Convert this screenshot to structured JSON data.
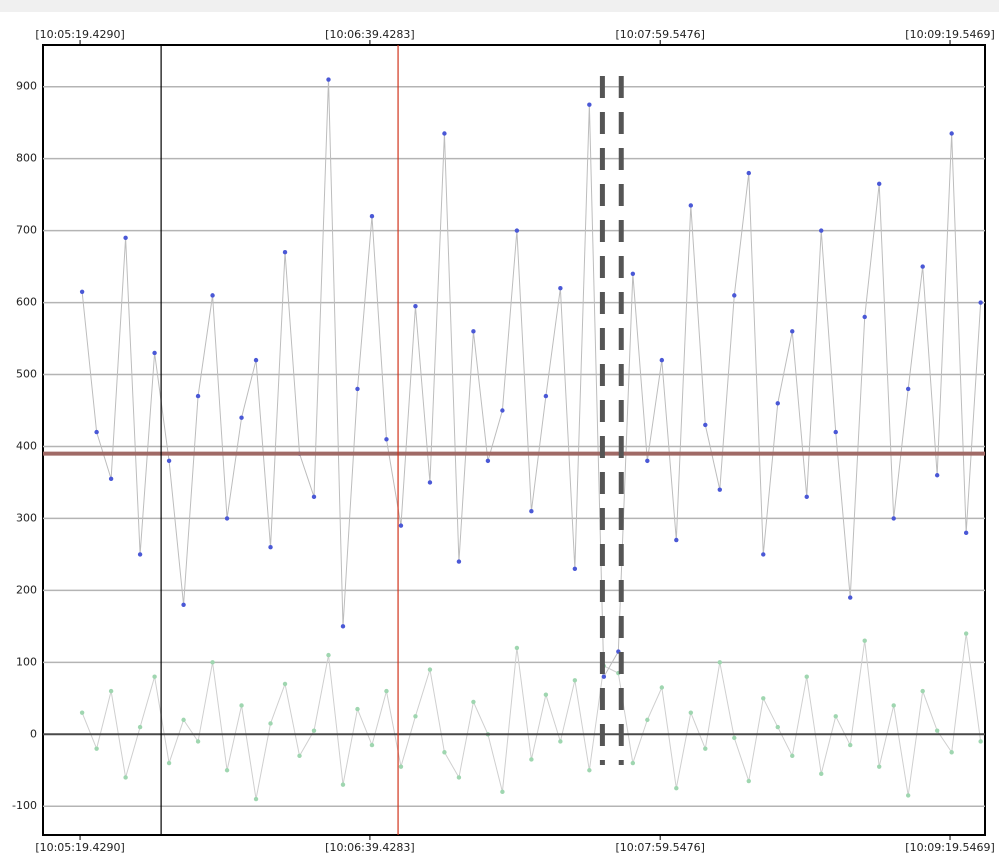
{
  "chart_data": {
    "type": "scatter-line",
    "xlim": [
      36309.2,
      36569.2
    ],
    "ylim": [
      -140,
      958
    ],
    "xticks": [
      {
        "value": 36319.429,
        "label": "[10:05:19.4290]"
      },
      {
        "value": 36399.4283,
        "label": "[10:06:39.4283]"
      },
      {
        "value": 36479.5476,
        "label": "[10:07:59.5476]"
      },
      {
        "value": 36559.5469,
        "label": "[10:09:19.5469]"
      }
    ],
    "yticks": [
      -100,
      0,
      100,
      200,
      300,
      400,
      500,
      600,
      700,
      800,
      900
    ],
    "grid": true,
    "x": [
      36320,
      36324,
      36328,
      36332,
      36336,
      36340,
      36344,
      36348,
      36352,
      36356,
      36360,
      36364,
      36368,
      36372,
      36376,
      36380,
      36384,
      36388,
      36392,
      36396,
      36400,
      36404,
      36408,
      36412,
      36416,
      36420,
      36424,
      36428,
      36432,
      36436,
      36440,
      36444,
      36448,
      36452,
      36456,
      36460,
      36464,
      36468,
      36472,
      36476,
      36480,
      36484,
      36488,
      36492,
      36496,
      36500,
      36504,
      36508,
      36512,
      36516,
      36520,
      36524,
      36528,
      36532,
      36536,
      36540,
      36544,
      36548,
      36552,
      36556,
      36560,
      36564,
      36568
    ],
    "series": [
      {
        "color": "#4a58d6",
        "line_color": "#bdbdbd",
        "values": [
          615,
          420,
          355,
          690,
          250,
          530,
          380,
          180,
          470,
          610,
          300,
          440,
          520,
          260,
          670,
          390,
          330,
          910,
          150,
          480,
          720,
          410,
          290,
          595,
          350,
          835,
          240,
          560,
          380,
          450,
          700,
          310,
          470,
          620,
          230,
          875,
          80,
          115,
          640,
          380,
          520,
          270,
          735,
          430,
          340,
          610,
          780,
          250,
          460,
          560,
          330,
          700,
          420,
          190,
          580,
          765,
          300,
          480,
          650,
          360,
          835,
          280,
          600
        ]
      },
      {
        "color": "#9fd6b0",
        "line_color": "#cfcfcf",
        "values": [
          30,
          -20,
          60,
          -60,
          10,
          80,
          -40,
          20,
          -10,
          100,
          -50,
          40,
          -90,
          15,
          70,
          -30,
          5,
          110,
          -70,
          35,
          -15,
          60,
          -45,
          25,
          90,
          -25,
          -60,
          45,
          0,
          -80,
          120,
          -35,
          55,
          -10,
          75,
          -50,
          95,
          85,
          -40,
          20,
          65,
          -75,
          30,
          -20,
          100,
          -5,
          -65,
          50,
          10,
          -30,
          80,
          -55,
          25,
          -15,
          130,
          -45,
          40,
          -85,
          60,
          5,
          -25,
          140,
          -10
        ]
      }
    ],
    "reference_lines": [
      {
        "y": 390,
        "color": "#a06a66"
      },
      {
        "y": 0,
        "color": "#4a4a4a"
      }
    ],
    "cursors": [
      {
        "x": 36341.8,
        "color": "#000000",
        "dashed": false
      },
      {
        "x": 36407.2,
        "color": "#d0341c",
        "dashed": false
      },
      {
        "x": 36463.6,
        "color": "#555555",
        "dashed": true
      },
      {
        "x": 36468.8,
        "color": "#555555",
        "dashed": true
      }
    ]
  }
}
